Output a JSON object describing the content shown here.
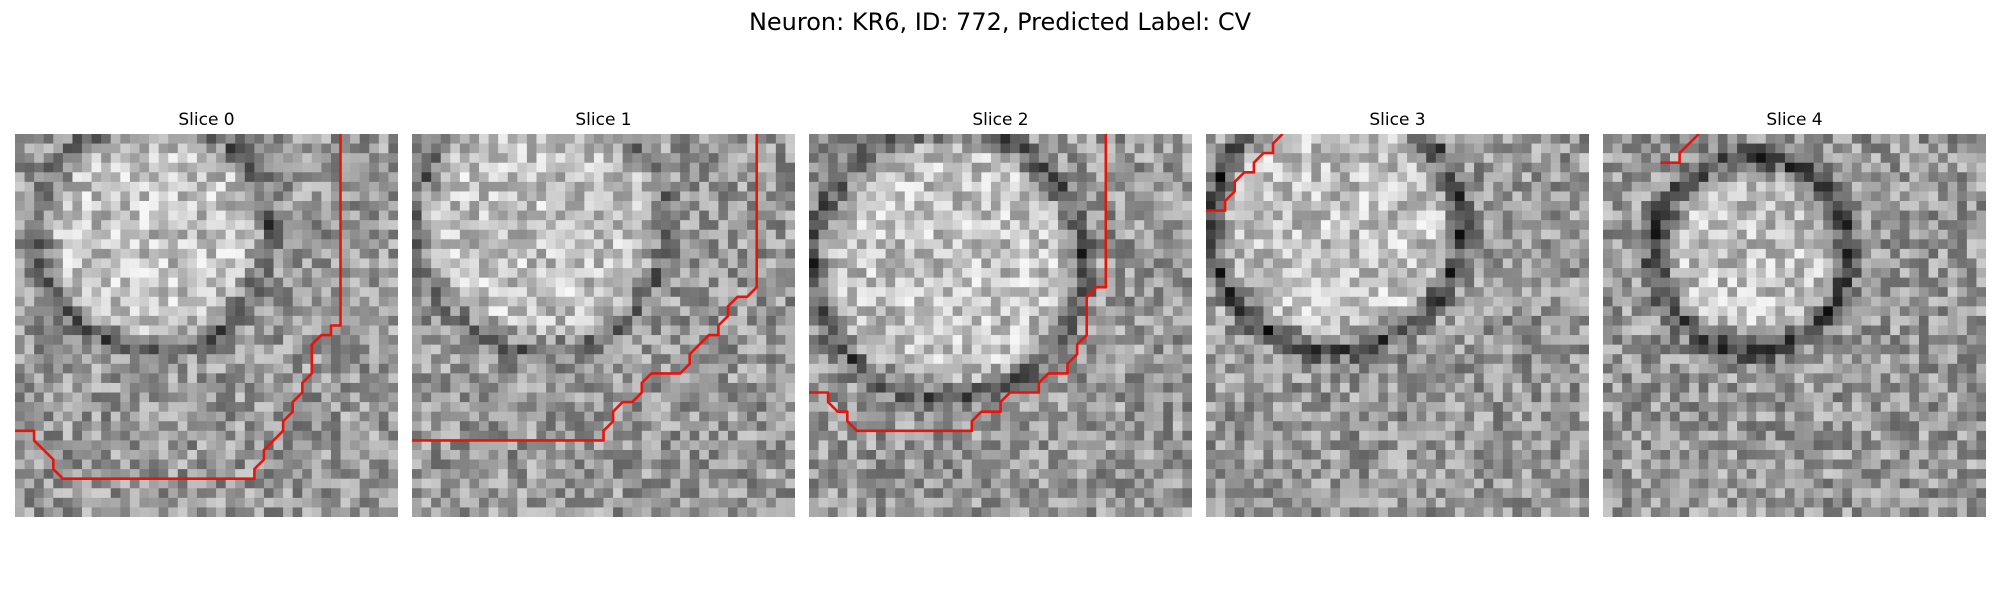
{
  "figure": {
    "title": "Neuron: KR6, ID: 772, Predicted Label: CV",
    "panels": [
      {
        "title": "Slice 0",
        "seed": 11,
        "center": [
          14,
          10
        ],
        "radius": 12,
        "darkness": 0.35,
        "contour": [
          [
            0,
            31
          ],
          [
            2,
            31
          ],
          [
            2,
            32
          ],
          [
            3,
            33
          ],
          [
            4,
            34
          ],
          [
            4,
            35
          ],
          [
            5,
            36
          ],
          [
            25,
            36
          ],
          [
            25,
            35
          ],
          [
            26,
            34
          ],
          [
            26,
            33
          ],
          [
            27,
            32
          ],
          [
            28,
            31
          ],
          [
            28,
            30
          ],
          [
            29,
            29
          ],
          [
            29,
            28
          ],
          [
            30,
            27
          ],
          [
            30,
            26
          ],
          [
            31,
            25
          ],
          [
            31,
            22
          ],
          [
            32,
            21
          ],
          [
            33,
            21
          ],
          [
            33,
            20
          ],
          [
            34,
            20
          ],
          [
            34,
            0
          ]
        ]
      },
      {
        "title": "Slice 1",
        "seed": 23,
        "center": [
          13,
          9
        ],
        "radius": 13,
        "darkness": 0.3,
        "contour": [
          [
            0,
            32
          ],
          [
            20,
            32
          ],
          [
            20,
            31
          ],
          [
            21,
            30
          ],
          [
            21,
            29
          ],
          [
            22,
            28
          ],
          [
            23,
            28
          ],
          [
            24,
            27
          ],
          [
            24,
            26
          ],
          [
            25,
            25
          ],
          [
            28,
            25
          ],
          [
            29,
            24
          ],
          [
            29,
            23
          ],
          [
            30,
            22
          ],
          [
            31,
            21
          ],
          [
            32,
            21
          ],
          [
            32,
            20
          ],
          [
            33,
            19
          ],
          [
            33,
            18
          ],
          [
            34,
            17
          ],
          [
            35,
            17
          ],
          [
            36,
            16
          ],
          [
            36,
            0
          ]
        ]
      },
      {
        "title": "Slice 2",
        "seed": 37,
        "center": [
          14,
          13
        ],
        "radius": 14,
        "darkness": 0.4,
        "contour": [
          [
            0,
            27
          ],
          [
            2,
            27
          ],
          [
            2,
            28
          ],
          [
            3,
            29
          ],
          [
            4,
            29
          ],
          [
            4,
            30
          ],
          [
            5,
            31
          ],
          [
            17,
            31
          ],
          [
            17,
            30
          ],
          [
            18,
            29
          ],
          [
            20,
            29
          ],
          [
            20,
            28
          ],
          [
            21,
            27
          ],
          [
            24,
            27
          ],
          [
            24,
            26
          ],
          [
            25,
            25
          ],
          [
            27,
            25
          ],
          [
            27,
            24
          ],
          [
            28,
            23
          ],
          [
            28,
            22
          ],
          [
            29,
            21
          ],
          [
            29,
            17
          ],
          [
            30,
            16
          ],
          [
            31,
            16
          ],
          [
            31,
            0
          ]
        ]
      },
      {
        "title": "Slice 3",
        "seed": 51,
        "center": [
          13,
          9
        ],
        "radius": 13,
        "darkness": 0.45,
        "contour": [
          [
            0,
            8
          ],
          [
            2,
            8
          ],
          [
            2,
            7
          ],
          [
            3,
            6
          ],
          [
            3,
            5
          ],
          [
            4,
            4
          ],
          [
            5,
            4
          ],
          [
            5,
            3
          ],
          [
            6,
            2
          ],
          [
            7,
            2
          ],
          [
            7,
            1
          ],
          [
            8,
            0
          ]
        ]
      },
      {
        "title": "Slice 4",
        "seed": 67,
        "center": [
          15,
          12
        ],
        "radius": 10,
        "darkness": 0.5,
        "contour": [
          [
            6,
            3
          ],
          [
            8,
            3
          ],
          [
            8,
            2
          ],
          [
            9,
            1
          ],
          [
            10,
            0
          ]
        ]
      }
    ]
  }
}
